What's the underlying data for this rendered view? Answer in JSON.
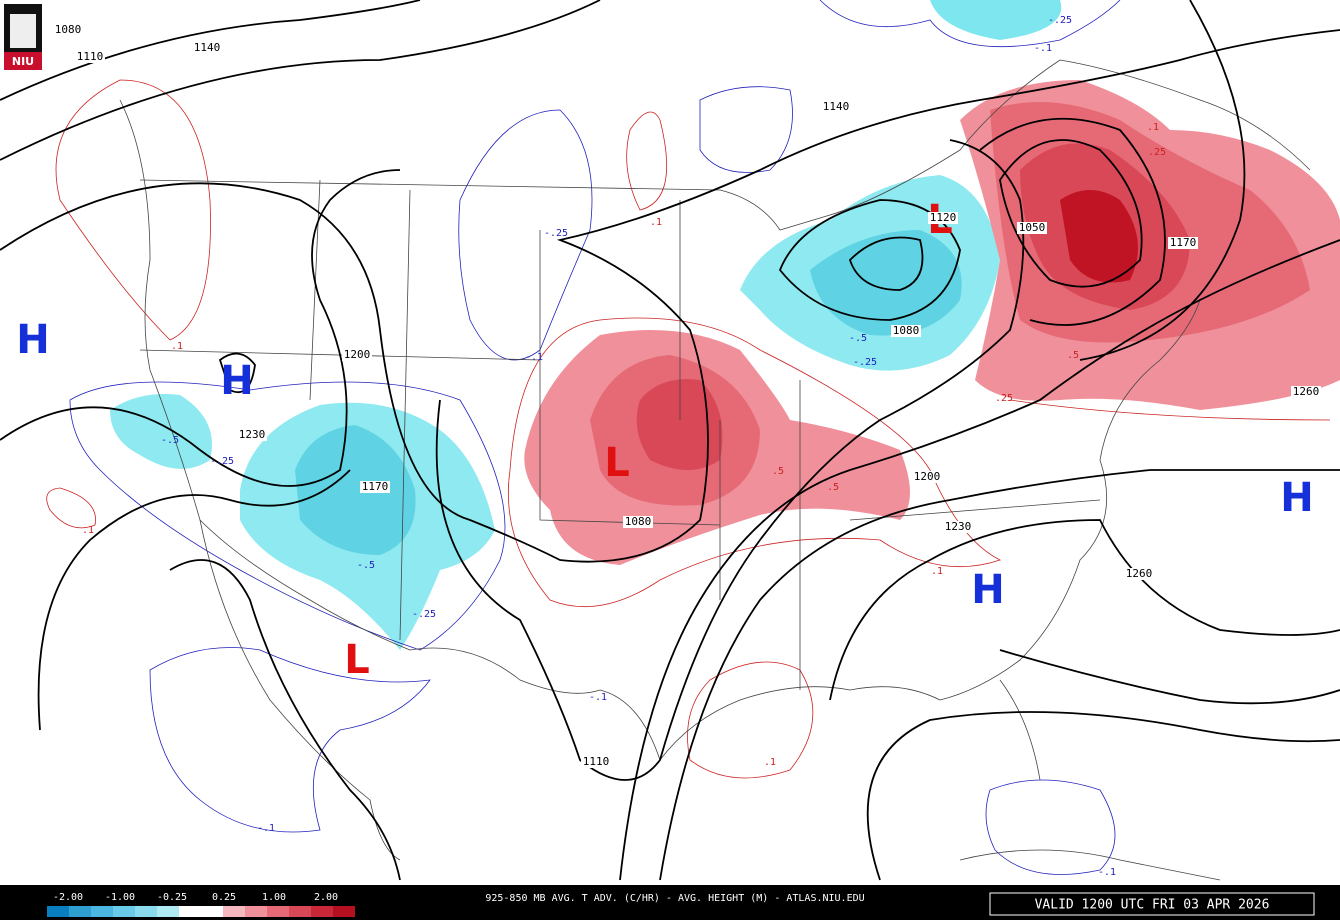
{
  "logo": "NIU",
  "title": "925-850 MB AVG. T ADV. (C/HR) - AVG. HEIGHT (M) - ATLAS.NIU.EDU",
  "valid": "VALID 1200 UTC FRI 03 APR 2026",
  "legend": [
    "-2.00",
    "-1.00",
    "-0.25",
    "0.25",
    "1.00",
    "2.00"
  ],
  "centers": [
    "H",
    "H",
    "L",
    "L",
    "L",
    "H",
    "H"
  ],
  "height_labels": [
    "1080",
    "1110",
    "1140",
    "1140",
    "1200",
    "1230",
    "1170",
    "1080",
    "1120",
    "1050",
    "1170",
    "1080",
    "1200",
    "1230",
    "1260",
    "1260",
    "1110"
  ],
  "advection_labels": [
    "-.25",
    "-.1",
    ".1",
    ".25",
    "-.25",
    ".1",
    "-.1",
    ".1",
    "-.5",
    "-.25",
    "-.5",
    "-.25",
    ".1",
    ".5",
    ".5",
    "-.5",
    "-.25",
    ".1",
    ".5",
    ".25",
    "-.1",
    ".1",
    "-.1",
    "-.1"
  ]
}
